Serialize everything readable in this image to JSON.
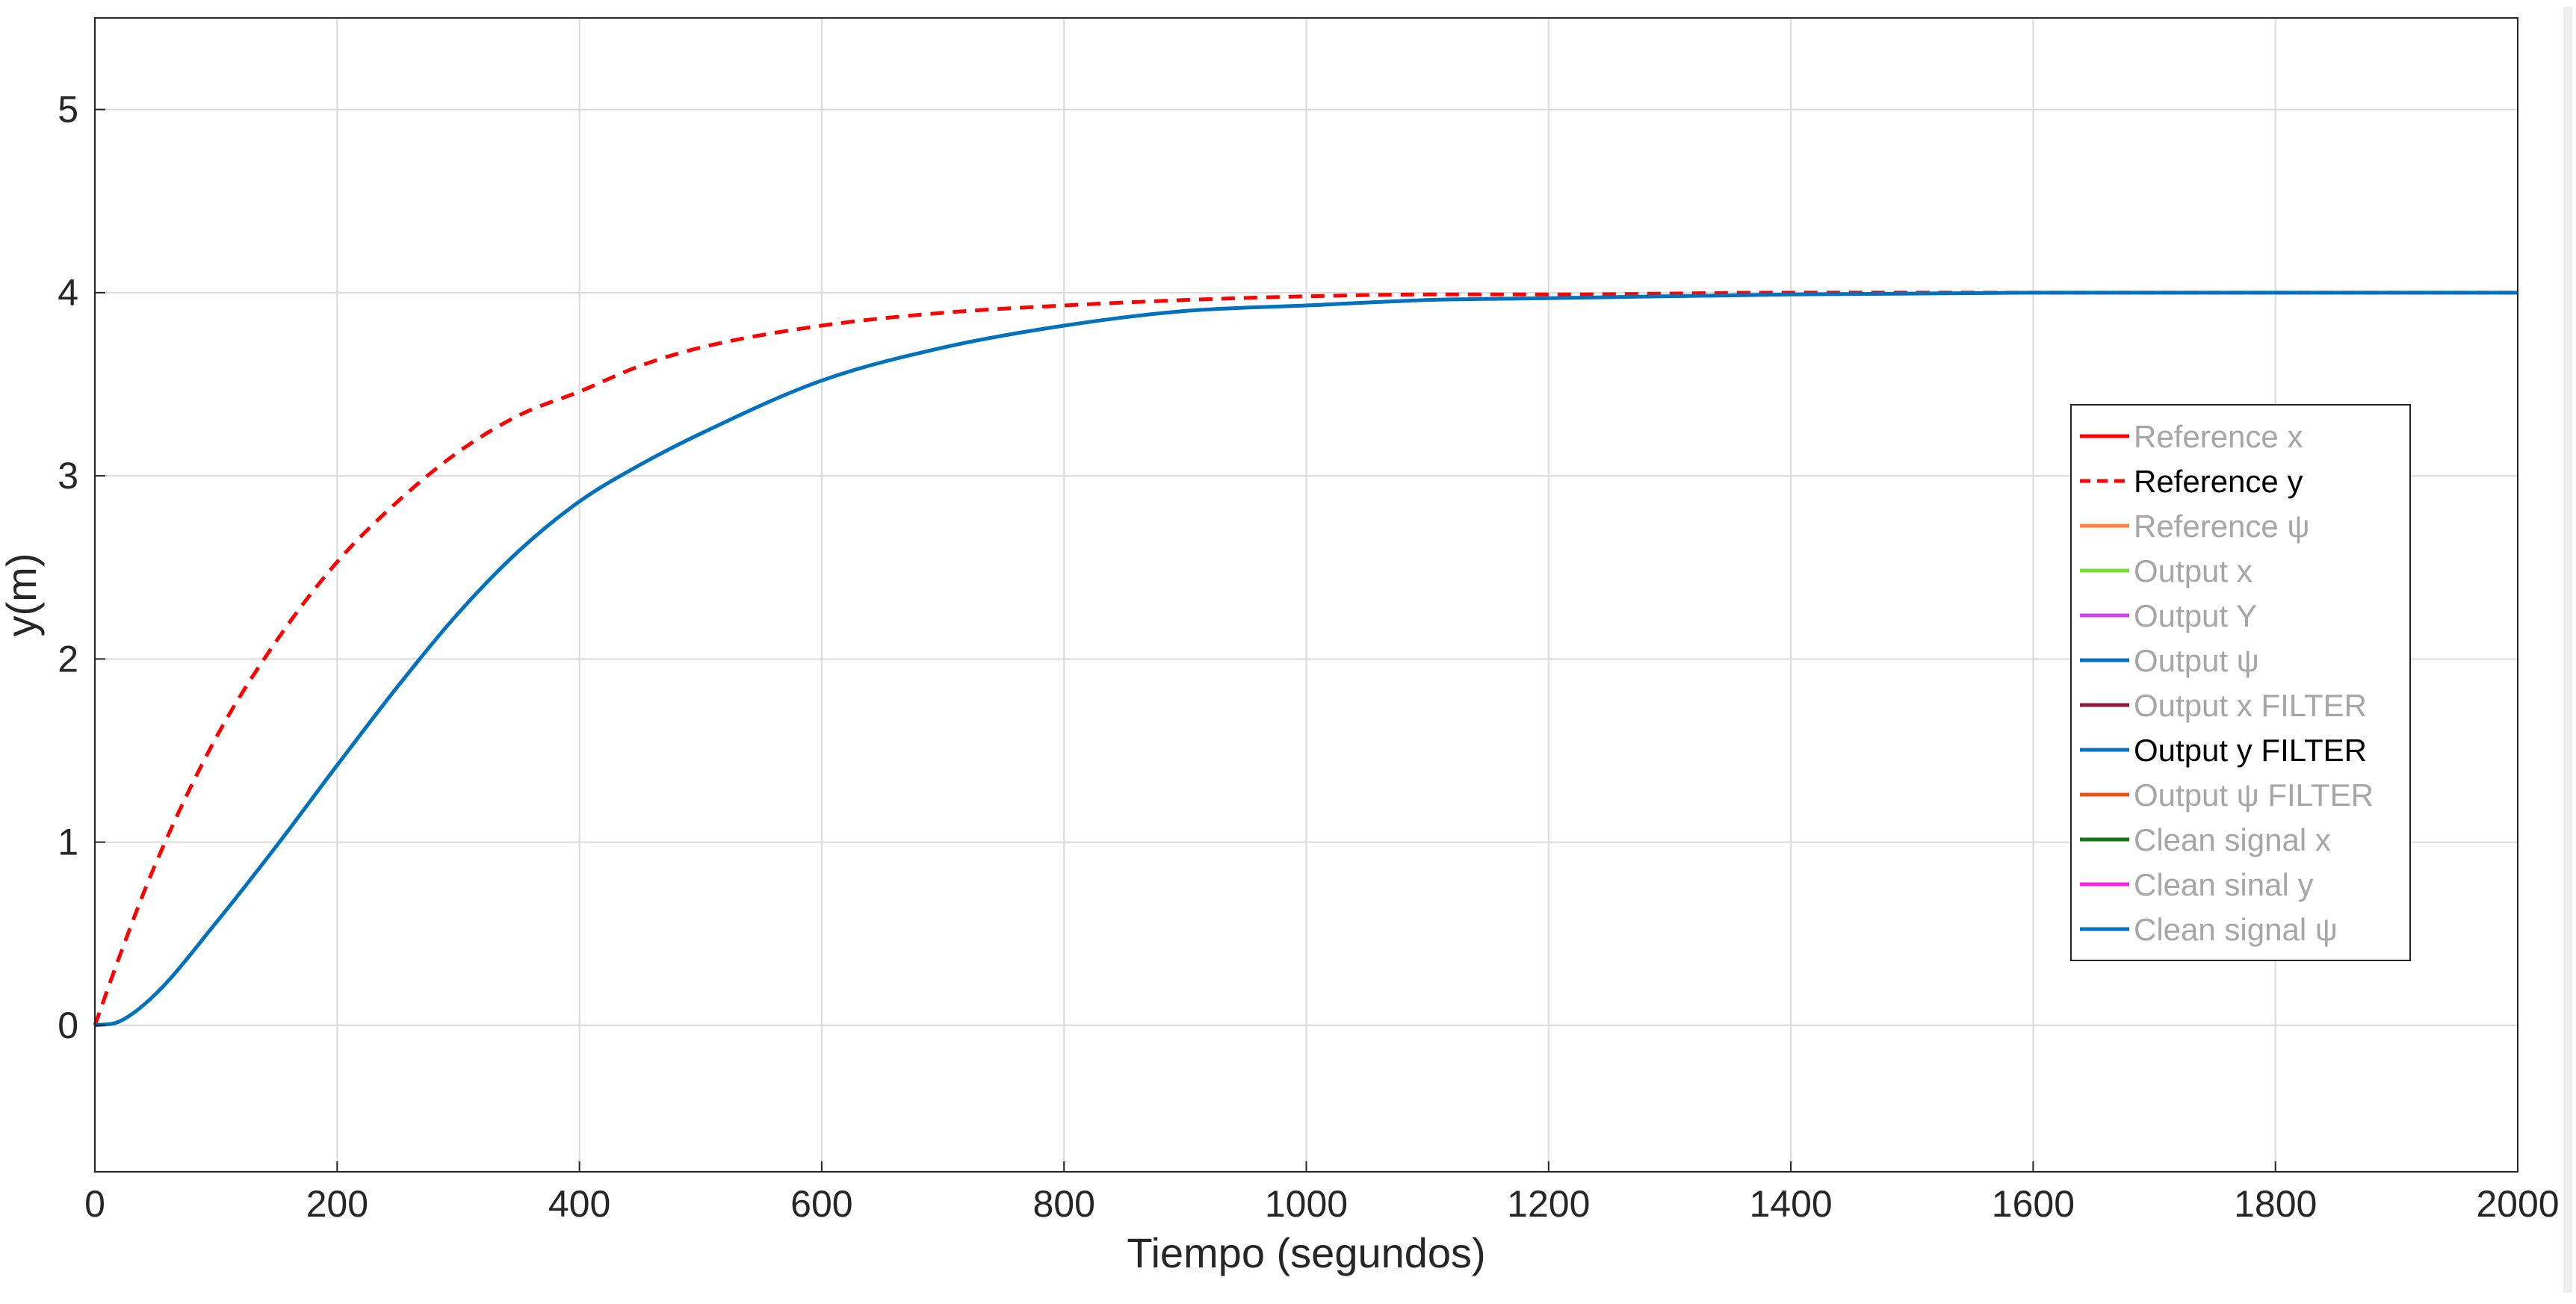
{
  "chart_data": {
    "type": "line",
    "xlabel": "Tiempo (segundos)",
    "ylabel": "y(m)",
    "xlim": [
      0,
      2000
    ],
    "ylim": [
      -0.8,
      5.5
    ],
    "xticks": [
      0,
      200,
      400,
      600,
      800,
      1000,
      1200,
      1400,
      1600,
      1800,
      2000
    ],
    "yticks": [
      0,
      1,
      2,
      3,
      4,
      5
    ],
    "grid": true,
    "legend_position": "right",
    "series": [
      {
        "name": "Reference y",
        "color": "#ff0000",
        "dash": "dashed",
        "x": [
          0,
          20,
          50,
          100,
          150,
          200,
          250,
          300,
          350,
          400,
          450,
          500,
          600,
          700,
          800,
          900,
          1000,
          1100,
          1200,
          1400,
          1600,
          1800,
          2000
        ],
        "y": [
          0,
          0.37,
          0.88,
          1.57,
          2.1,
          2.53,
          2.86,
          3.13,
          3.33,
          3.46,
          3.6,
          3.7,
          3.82,
          3.89,
          3.93,
          3.96,
          3.98,
          3.99,
          3.99,
          4.0,
          4.0,
          4.0,
          4.0
        ]
      },
      {
        "name": "Output y FILTER",
        "color": "#0072bd",
        "dash": "solid",
        "x": [
          0,
          20,
          50,
          100,
          150,
          200,
          250,
          300,
          350,
          400,
          450,
          500,
          600,
          700,
          800,
          900,
          1000,
          1100,
          1200,
          1400,
          1600,
          1800,
          2000
        ],
        "y": [
          0,
          0.02,
          0.17,
          0.56,
          0.98,
          1.42,
          1.85,
          2.25,
          2.59,
          2.86,
          3.06,
          3.23,
          3.52,
          3.7,
          3.82,
          3.9,
          3.93,
          3.96,
          3.97,
          3.99,
          4.0,
          4.0,
          4.0
        ]
      }
    ],
    "legend": [
      {
        "label": "Reference x",
        "color": "#ff0000",
        "dash": "solid",
        "active": false
      },
      {
        "label": "Reference y",
        "color": "#ff0000",
        "dash": "dashed",
        "active": true
      },
      {
        "label": "Reference ψ",
        "color": "#ff8040",
        "dash": "solid",
        "active": false
      },
      {
        "label": "Output x",
        "color": "#77dd33",
        "dash": "solid",
        "active": false
      },
      {
        "label": "Output Y",
        "color": "#cc44ee",
        "dash": "solid",
        "active": false
      },
      {
        "label": "Output ψ",
        "color": "#0072bd",
        "dash": "solid",
        "active": false
      },
      {
        "label": "Output x FILTER",
        "color": "#8b1a3a",
        "dash": "solid",
        "active": false
      },
      {
        "label": "Output y FILTER",
        "color": "#0072bd",
        "dash": "solid",
        "active": true
      },
      {
        "label": "Output ψ FILTER",
        "color": "#e8501a",
        "dash": "solid",
        "active": false
      },
      {
        "label": "Clean signal x",
        "color": "#117711",
        "dash": "solid",
        "active": false
      },
      {
        "label": "Clean sinal y",
        "color": "#ff22dd",
        "dash": "solid",
        "active": false
      },
      {
        "label": "Clean signal ψ",
        "color": "#0072bd",
        "dash": "solid",
        "active": false
      }
    ]
  }
}
